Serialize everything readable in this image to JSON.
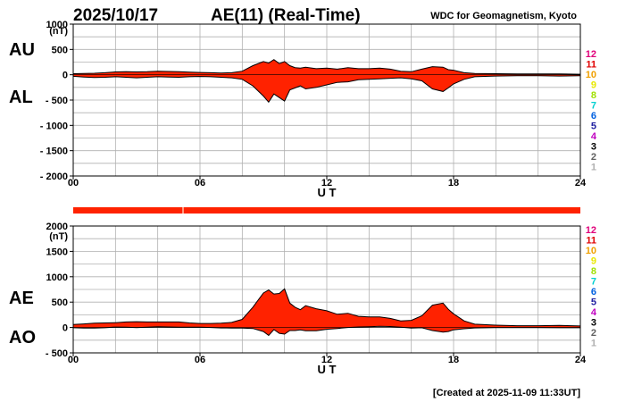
{
  "header": {
    "date": "2025/10/17",
    "title": "AE(11) (Real-Time)",
    "source": "WDC for Geomagnetism, Kyoto"
  },
  "footer": {
    "created": "[Created at 2025-11-09 11:33UT]"
  },
  "station_legend": {
    "labels": [
      "12",
      "11",
      "10",
      "9",
      "8",
      "7",
      "6",
      "5",
      "4",
      "3",
      "2",
      "1"
    ],
    "colors": [
      "#e0007a",
      "#e00000",
      "#f0a000",
      "#e8e800",
      "#a0e000",
      "#00d0d0",
      "#0060e0",
      "#2020a0",
      "#c000c0",
      "#000000",
      "#606060",
      "#b0b0b0"
    ]
  },
  "colors": {
    "fill": "#ff2200",
    "outline": "#000000",
    "grid": "#b0b0b0"
  },
  "chart_data": [
    {
      "type": "area",
      "panel": "AU/AL",
      "side_labels": [
        "AU",
        "AL"
      ],
      "unit_label": "(nT)",
      "xlabel": "U T",
      "ylabel": "",
      "xlim": [
        0,
        24
      ],
      "ylim": [
        -2000,
        1000
      ],
      "xticks": [
        "00",
        "06",
        "12",
        "18",
        "24"
      ],
      "yticks": [
        "1000",
        "500",
        "0",
        "- 500",
        "- 1000",
        "- 1500",
        "- 2000"
      ],
      "grid": true,
      "x_hours": [
        0,
        0.5,
        1,
        1.5,
        2,
        2.5,
        3,
        3.5,
        4,
        4.5,
        5,
        5.5,
        6,
        6.5,
        7,
        7.5,
        8,
        8.5,
        9,
        9.25,
        9.5,
        9.75,
        10,
        10.25,
        10.5,
        10.75,
        11,
        11.5,
        12,
        12.5,
        13,
        13.5,
        14,
        14.5,
        15,
        15.5,
        16,
        16.5,
        17,
        17.5,
        17.75,
        18,
        18.5,
        19,
        20,
        21,
        22,
        23,
        24
      ],
      "series": [
        {
          "name": "AU",
          "values": [
            20,
            25,
            30,
            40,
            55,
            60,
            55,
            60,
            70,
            65,
            60,
            50,
            45,
            40,
            35,
            40,
            70,
            180,
            260,
            230,
            300,
            220,
            260,
            180,
            140,
            130,
            150,
            120,
            130,
            110,
            140,
            120,
            120,
            130,
            110,
            70,
            60,
            110,
            160,
            150,
            100,
            90,
            40,
            25,
            20,
            15,
            15,
            15,
            10
          ]
        },
        {
          "name": "AL",
          "values": [
            -30,
            -45,
            -55,
            -50,
            -40,
            -50,
            -60,
            -50,
            -40,
            -45,
            -50,
            -40,
            -35,
            -40,
            -50,
            -60,
            -90,
            -220,
            -420,
            -540,
            -380,
            -450,
            -520,
            -300,
            -260,
            -220,
            -280,
            -250,
            -200,
            -150,
            -140,
            -100,
            -90,
            -80,
            -70,
            -60,
            -80,
            -120,
            -280,
            -330,
            -260,
            -180,
            -90,
            -40,
            -25,
            -20,
            -20,
            -25,
            -20
          ]
        }
      ]
    },
    {
      "type": "area",
      "panel": "AE/AO",
      "side_labels": [
        "AE",
        "AO"
      ],
      "unit_label": "(nT)",
      "xlabel": "U T",
      "ylabel": "",
      "xlim": [
        0,
        24
      ],
      "ylim": [
        -500,
        2000
      ],
      "xticks": [
        "00",
        "06",
        "12",
        "18",
        "24"
      ],
      "yticks": [
        "2000",
        "1500",
        "1000",
        "500",
        "0",
        "- 500"
      ],
      "grid": true,
      "x_hours": [
        0,
        0.5,
        1,
        1.5,
        2,
        2.5,
        3,
        3.5,
        4,
        4.5,
        5,
        5.5,
        6,
        6.5,
        7,
        7.5,
        8,
        8.5,
        9,
        9.25,
        9.5,
        9.75,
        10,
        10.25,
        10.5,
        10.75,
        11,
        11.5,
        12,
        12.5,
        13,
        13.5,
        14,
        14.5,
        15,
        15.5,
        16,
        16.5,
        17,
        17.5,
        17.75,
        18,
        18.5,
        19,
        20,
        21,
        22,
        23,
        24
      ],
      "series": [
        {
          "name": "AE",
          "values": [
            60,
            70,
            85,
            90,
            95,
            110,
            115,
            110,
            110,
            110,
            110,
            90,
            80,
            80,
            85,
            100,
            160,
            400,
            680,
            740,
            660,
            670,
            760,
            480,
            400,
            350,
            430,
            370,
            330,
            260,
            280,
            220,
            210,
            210,
            180,
            130,
            140,
            230,
            440,
            480,
            360,
            270,
            130,
            65,
            45,
            35,
            35,
            40,
            30
          ]
        },
        {
          "name": "AO",
          "values": [
            -5,
            -10,
            -12,
            -5,
            8,
            5,
            -3,
            5,
            15,
            10,
            5,
            5,
            5,
            0,
            -8,
            -10,
            -10,
            -20,
            -80,
            -155,
            -40,
            -115,
            -130,
            -60,
            -60,
            -45,
            -65,
            -65,
            -35,
            -20,
            0,
            10,
            15,
            25,
            20,
            5,
            -10,
            -5,
            -60,
            -90,
            -80,
            -45,
            -25,
            -8,
            -3,
            -3,
            -3,
            -5,
            -5
          ]
        }
      ]
    }
  ]
}
